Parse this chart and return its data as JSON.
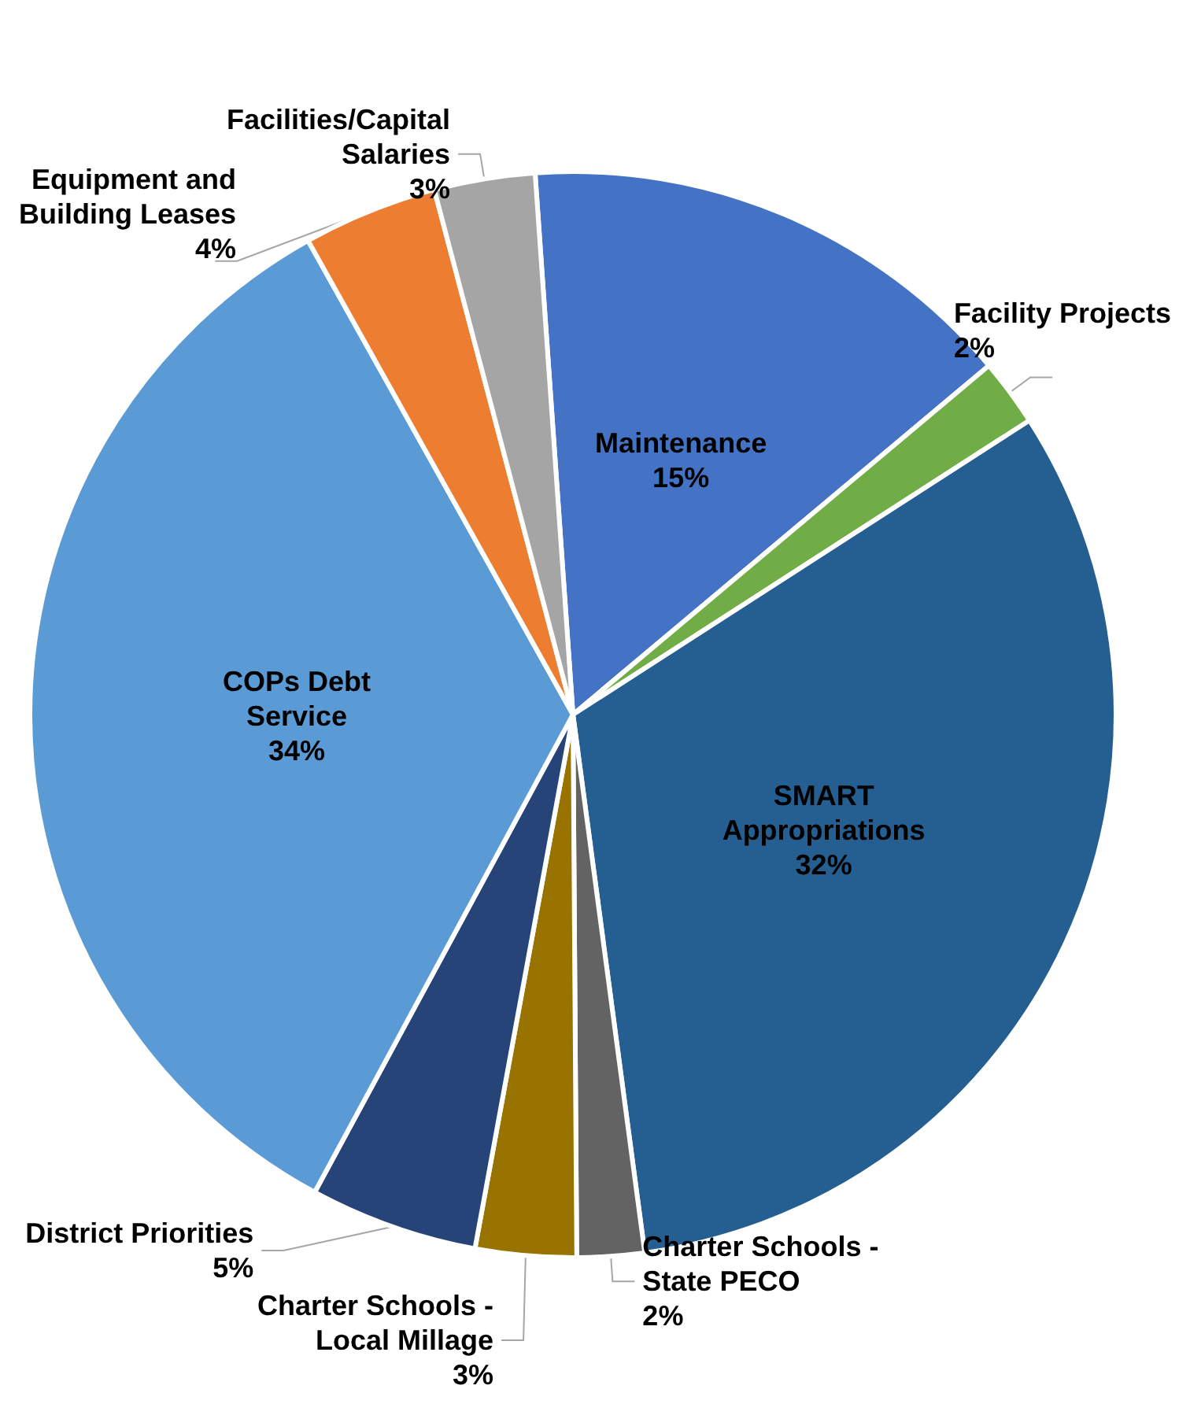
{
  "chart_data": {
    "type": "pie",
    "categories": [
      "Maintenance",
      "Facility Projects",
      "SMART\nAppropriations",
      "Charter Schools -\nState PECO",
      "Charter Schools -\nLocal Millage",
      "District Priorities",
      "COPs Debt\nService",
      "Equipment and\nBuilding Leases",
      "Facilities/Capital\nSalaries"
    ],
    "values": [
      15,
      2,
      32,
      2,
      3,
      5,
      34,
      4,
      3
    ],
    "colors": [
      "#4472c4",
      "#70ad47",
      "#255e91",
      "#636363",
      "#997300",
      "#264478",
      "#5b9bd5",
      "#ed7d31",
      "#a5a5a5"
    ],
    "value_labels": [
      "15%",
      "2%",
      "32%",
      "2%",
      "3%",
      "5%",
      "34%",
      "4%",
      "3%"
    ],
    "legend": false
  }
}
